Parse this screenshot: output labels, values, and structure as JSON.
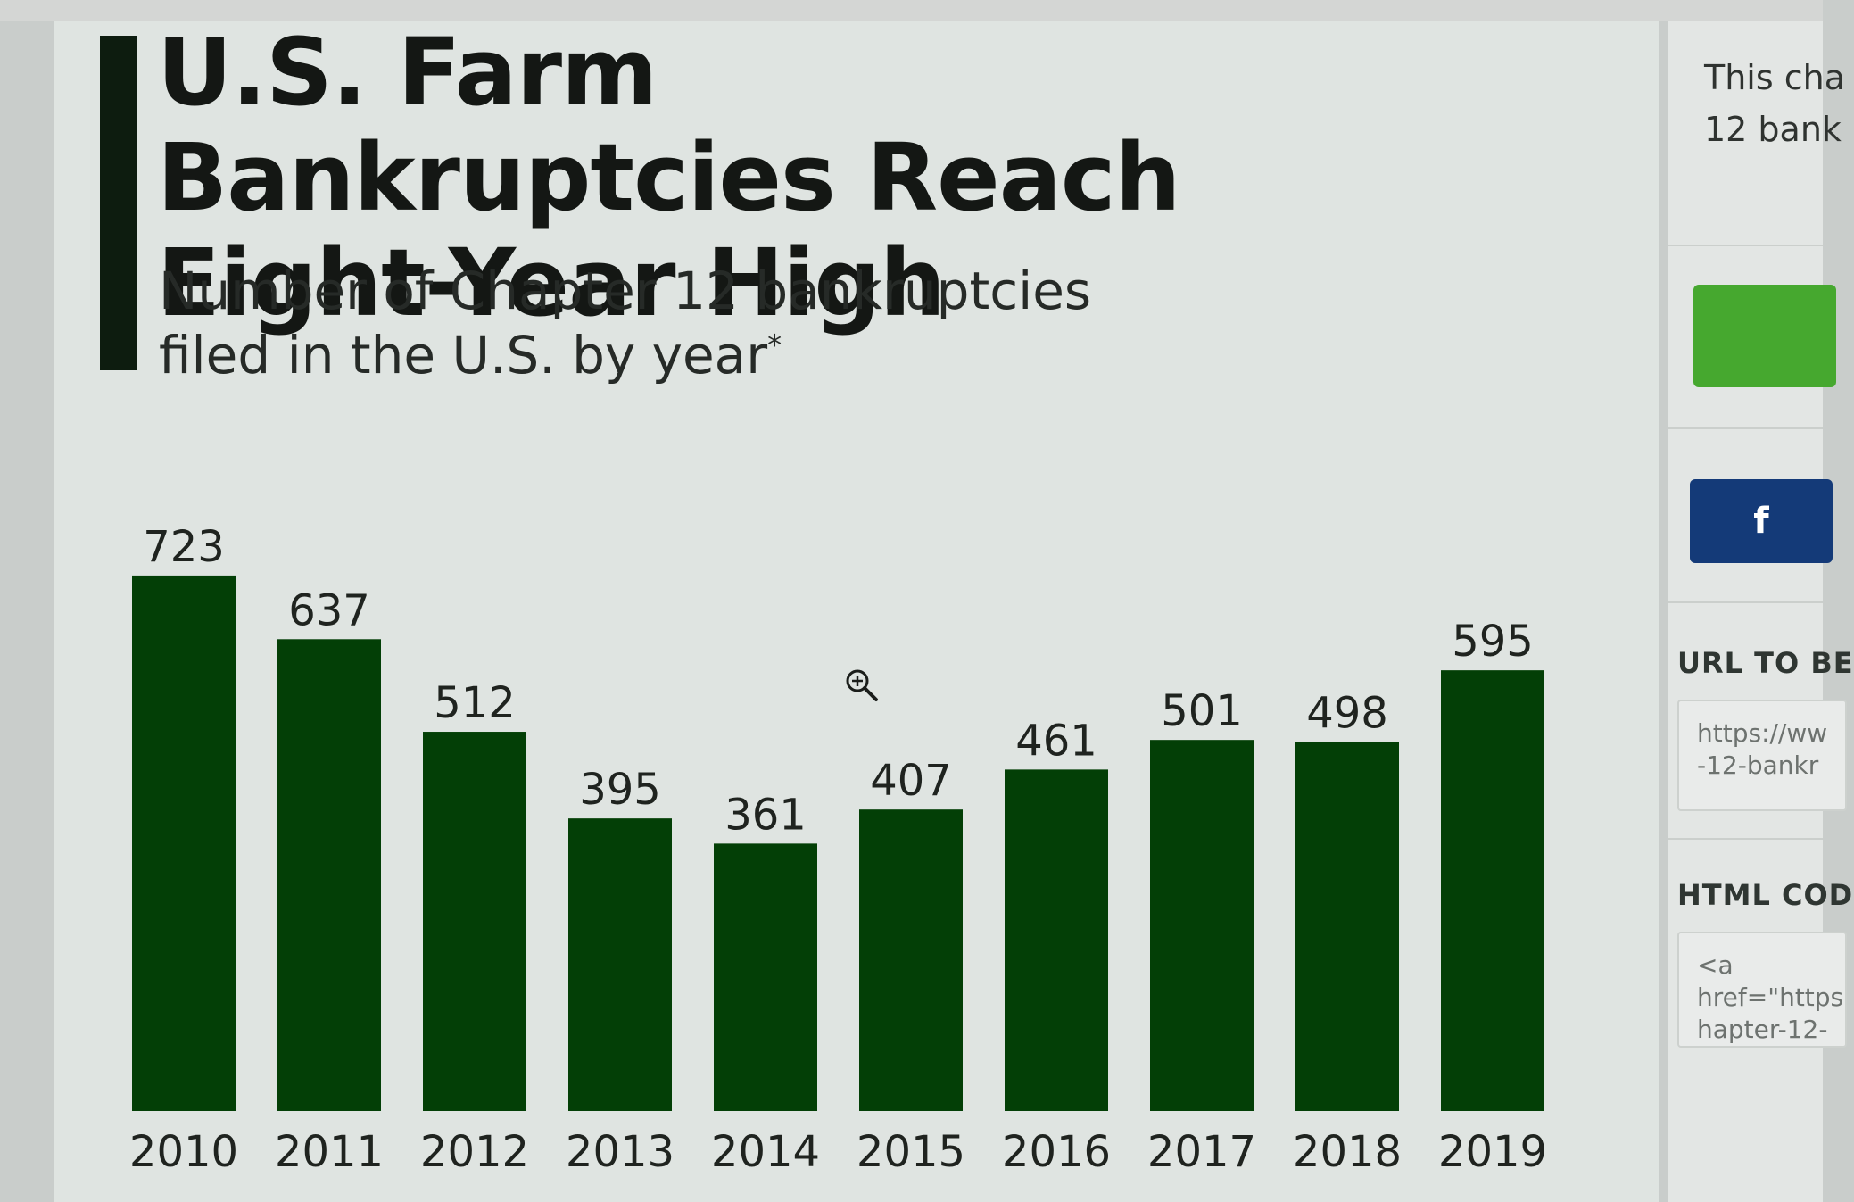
{
  "title": "U.S. Farm Bankruptcies Reach Eight-Year High",
  "subtitle_line1": "Number of Chapter 12 bankruptcies",
  "subtitle_line2": "filed in the U.S. by year",
  "subtitle_mark": "*",
  "colors": {
    "bar": "#033f06",
    "accent": "#0d1c0f",
    "label": "#1f231f",
    "share_green": "#46a82f",
    "share_facebook": "#143a78"
  },
  "icons": {
    "zoom": "zoom-in-icon",
    "facebook": "facebook-icon"
  },
  "right_panel": {
    "desc_line1": "This cha",
    "desc_line2": "12 bank",
    "facebook_label": "f",
    "url_label": "URL TO BE",
    "url_value": "https://ww\n-12-bankr",
    "html_label": "HTML COD",
    "html_value": "<a\nhref=\"https\nhapter-12-"
  },
  "chart_data": {
    "type": "bar",
    "categories": [
      "2010",
      "2011",
      "2012",
      "2013",
      "2014",
      "2015",
      "2016",
      "2017",
      "2018",
      "2019"
    ],
    "values": [
      723,
      637,
      512,
      395,
      361,
      407,
      461,
      501,
      498,
      595
    ],
    "title": "U.S. Farm Bankruptcies Reach Eight-Year High",
    "subtitle": "Number of Chapter 12 bankruptcies filed in the U.S. by year*",
    "xlabel": "",
    "ylabel": "",
    "data_labels": true,
    "grid": false,
    "legend": "none"
  }
}
